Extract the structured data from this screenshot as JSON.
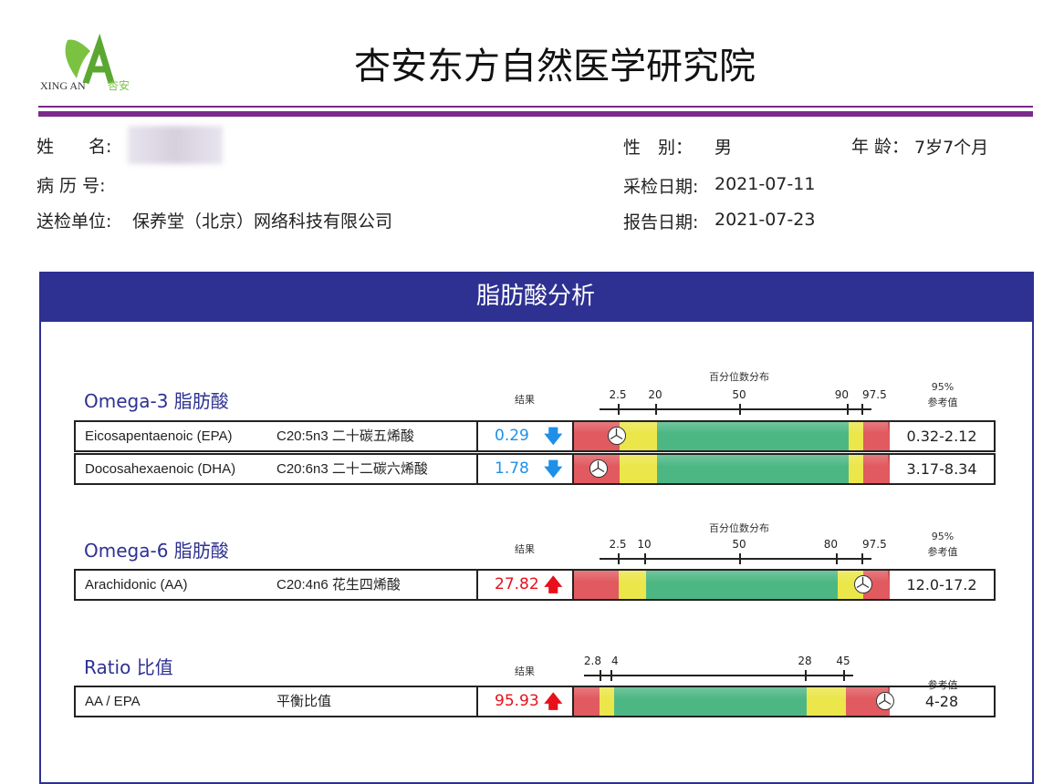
{
  "header": {
    "logo_text": "XING AN杏安",
    "title": "杏安东方自然医学研究院"
  },
  "patient": {
    "name_label": "姓　　名:",
    "name_value": "",
    "record_label": "病 历 号:",
    "record_value": "",
    "unit_label": "送检单位:",
    "unit_value": "保养堂（北京）网络科技有限公司",
    "sex_label": "性　别：",
    "sex_value": "男",
    "age_label": "年 龄：",
    "age_value": "7岁7个月",
    "sample_date_label": "采检日期:",
    "sample_date_value": "2021-07-11",
    "report_date_label": "报告日期:",
    "report_date_value": "2021-07-23"
  },
  "panel_title": "脂肪酸分析",
  "colors": {
    "red": "#e05a5f",
    "yellow": "#ebe64a",
    "green": "#4db784",
    "down": "#1e90e8",
    "up": "#e8101a",
    "brand": "#2e3192"
  },
  "sections": [
    {
      "title": "Omega-3 脂肪酸",
      "result_header": "结果",
      "scale_title": "百分位数分布",
      "ref_header_1": "95%",
      "ref_header_2": "参考值",
      "ticks": [
        "2.5",
        "20",
        "50",
        "90",
        "97.5"
      ],
      "rows": [
        {
          "name": "Eicosapentaenoic (EPA)",
          "formula": "C20:5n3 二十碳五烯酸",
          "value": "0.29",
          "direction": "down",
          "ref": "0.32-2.12"
        },
        {
          "name": "Docosahexaenoic (DHA)",
          "formula": "C20:6n3 二十二碳六烯酸",
          "value": "1.78",
          "direction": "down",
          "ref": "3.17-8.34"
        }
      ]
    },
    {
      "title": "Omega-6 脂肪酸",
      "result_header": "结果",
      "scale_title": "百分位数分布",
      "ref_header_1": "95%",
      "ref_header_2": "参考值",
      "ticks": [
        "2.5",
        "10",
        "50",
        "80",
        "97.5"
      ],
      "rows": [
        {
          "name": "Arachidonic (AA)",
          "formula": "C20:4n6 花生四烯酸",
          "value": "27.82",
          "direction": "up",
          "ref": "12.0-17.2"
        }
      ]
    },
    {
      "title": "Ratio 比值",
      "result_header": "结果",
      "ref_header_2": "参考值",
      "ticks": [
        "2.8",
        "4",
        "28",
        "45"
      ],
      "rows": [
        {
          "name": "AA / EPA",
          "formula": "平衡比值",
          "value": "95.93",
          "direction": "up",
          "ref": "4-28"
        }
      ]
    }
  ],
  "arrows": {
    "up": "🡅",
    "down": "🡇"
  }
}
